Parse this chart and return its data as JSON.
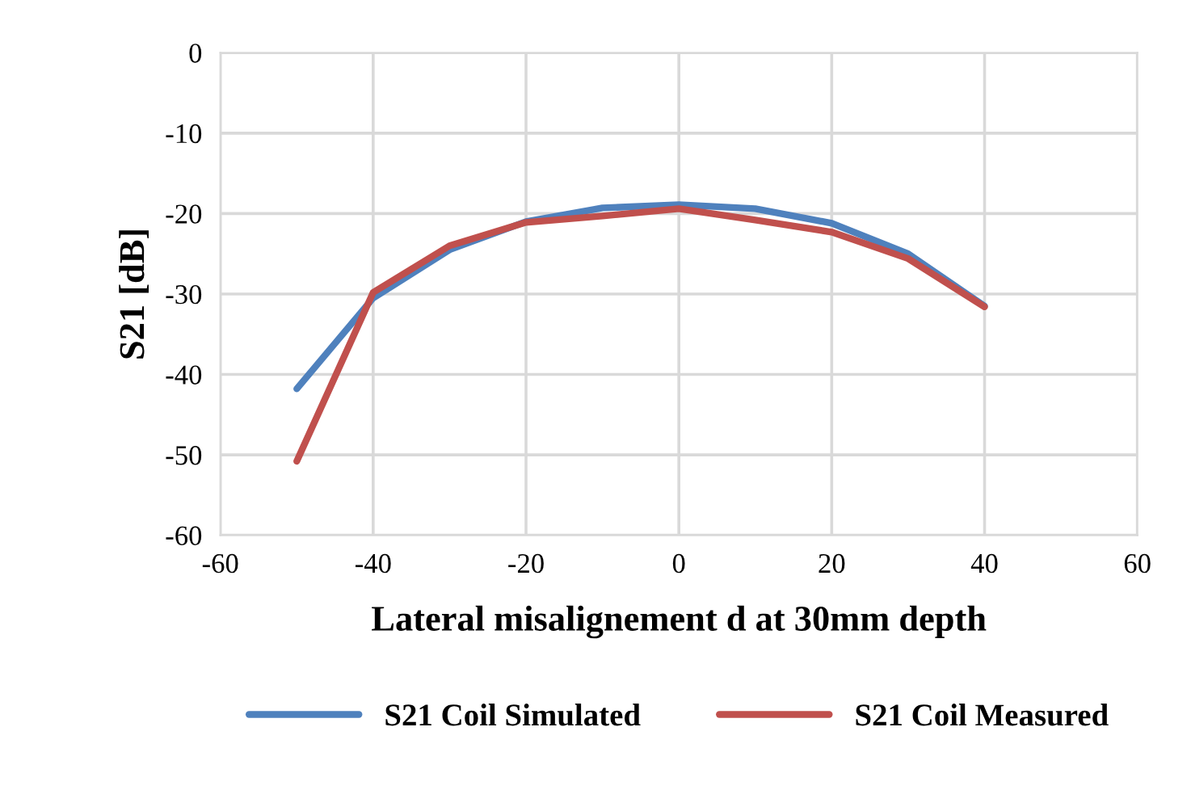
{
  "chart_data": {
    "type": "line",
    "xlabel": "Lateral misalignement d at 30mm depth",
    "ylabel": "S21 [dB]",
    "x": [
      -50,
      -40,
      -30,
      -20,
      -10,
      0,
      10,
      20,
      30,
      40
    ],
    "series": [
      {
        "name": "S21 Coil Simulated",
        "color": "#4f81bd",
        "values": [
          -41.8,
          -30.5,
          -24.5,
          -21,
          -19.3,
          -18.9,
          -19.4,
          -21.2,
          -25,
          -31.5
        ]
      },
      {
        "name": "S21 Coil Measured",
        "color": "#c0504d",
        "values": [
          -50.8,
          -29.8,
          -24,
          -21.1,
          -20.3,
          -19.4,
          -20.8,
          -22.3,
          -25.6,
          -31.6
        ]
      }
    ],
    "xlim": [
      -60,
      60
    ],
    "xticks": [
      -60,
      -40,
      -20,
      0,
      20,
      40,
      60
    ],
    "ylim": [
      -60,
      0
    ],
    "yticks": [
      -60,
      -50,
      -40,
      -30,
      -20,
      -10,
      0
    ],
    "grid": true,
    "legend": "bottom",
    "marker": "none",
    "line_style": "solid"
  }
}
